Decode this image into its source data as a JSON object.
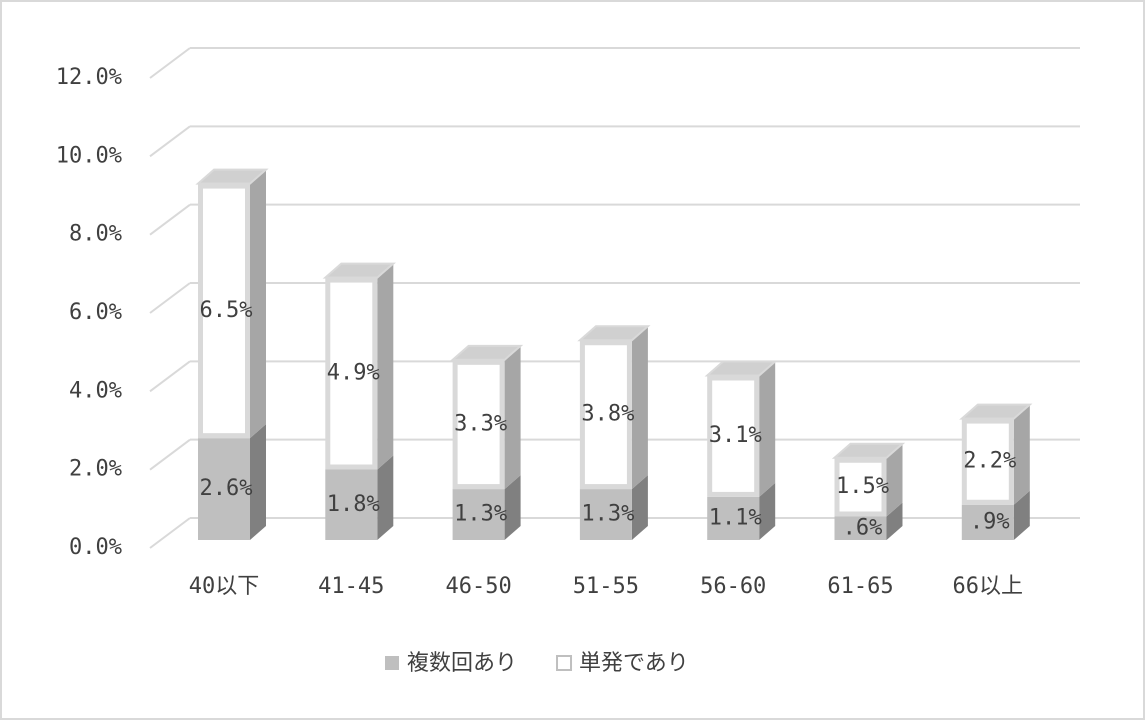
{
  "chart_data": {
    "type": "bar3d_stacked",
    "categories": [
      "40以下",
      "41-45",
      "46-50",
      "51-55",
      "56-60",
      "61-65",
      "66以上"
    ],
    "series": [
      {
        "name": "複数回あり",
        "color": "#bfbfbf",
        "values": [
          2.6,
          1.8,
          1.3,
          1.3,
          1.1,
          0.6,
          0.9
        ],
        "value_labels": [
          "2.6%",
          "1.8%",
          "1.3%",
          "1.3%",
          "1.1%",
          ".6%",
          ".9%"
        ]
      },
      {
        "name": "単発であり",
        "color": "#ffffff",
        "values": [
          6.5,
          4.9,
          3.3,
          3.8,
          3.1,
          1.5,
          2.2
        ],
        "value_labels": [
          "6.5%",
          "4.9%",
          "3.3%",
          "3.8%",
          "3.1%",
          "1.5%",
          "2.2%"
        ]
      }
    ],
    "ylim": [
      0,
      12
    ],
    "yticks": [
      {
        "value": 0,
        "label": "0.0%"
      },
      {
        "value": 2,
        "label": "2.0%"
      },
      {
        "value": 4,
        "label": "4.0%"
      },
      {
        "value": 6,
        "label": "6.0%"
      },
      {
        "value": 8,
        "label": "8.0%"
      },
      {
        "value": 10,
        "label": "10.0%"
      },
      {
        "value": 12,
        "label": "12.0%"
      }
    ],
    "grid": true,
    "legend": "bottom"
  }
}
